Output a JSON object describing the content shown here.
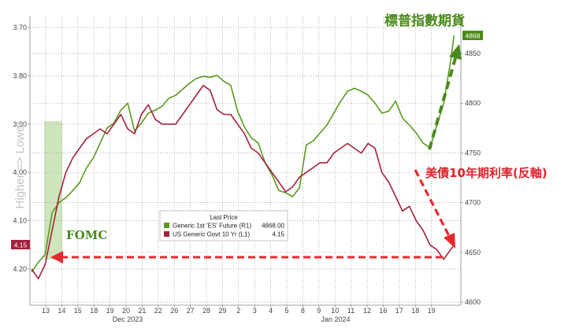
{
  "chart_data": {
    "type": "line",
    "left_axis": {
      "label": "Higher => Lower",
      "ticks": [
        "3.70",
        "3.80",
        "3.90",
        "4.00",
        "4.10",
        "4.20"
      ],
      "ylim": [
        3.7,
        4.25
      ],
      "inverted": true
    },
    "right_axis": {
      "ticks": [
        "4850",
        "4800",
        "4750",
        "4700",
        "4650",
        "4600"
      ],
      "ylim": [
        4595,
        4875
      ]
    },
    "x_tick_labels": [
      "13",
      "14",
      "15",
      "18",
      "19",
      "20",
      "21",
      "22",
      "26",
      "27",
      "28",
      "29",
      "2",
      "3",
      "4",
      "5",
      "8",
      "9",
      "10",
      "11",
      "12",
      "16",
      "17",
      "18",
      "19"
    ],
    "x_month_labels": [
      "Dec 2023",
      "Jan 2024"
    ],
    "legend": {
      "title": "Last Price",
      "entries": [
        {
          "name": "Generic 1st 'ES' Future  (R1)",
          "value": "4868.00",
          "color": "#5a9a1e"
        },
        {
          "name": "US Generic Govt 10 Yr  (L1)",
          "value": "4.15",
          "color": "#a3213c"
        }
      ]
    },
    "badges": {
      "es_last": "4868",
      "yield_last": "4.15"
    },
    "annotations": {
      "es_title": "標普指數期貨",
      "yield_title": "美債10年期利率(反軸)",
      "fomc": "FOMC"
    },
    "series": [
      {
        "name": "Generic 1st 'ES' Future",
        "axis": "right",
        "color": "#5a9a1e",
        "x": [
          0,
          0.4,
          0.8,
          1.2,
          1.6,
          2.0,
          2.4,
          2.8,
          3.2,
          3.6,
          4.0,
          4.4,
          4.8,
          5.2,
          5.6,
          6.0,
          6.4,
          6.8,
          7.2,
          7.6,
          8.0,
          8.4,
          8.8,
          9.2,
          9.6,
          10.0,
          10.4,
          10.8,
          11.2,
          11.6,
          12.0,
          12.4,
          12.8,
          13.2,
          13.6,
          14.0,
          14.4,
          14.8,
          15.2,
          15.6,
          16.0,
          16.4,
          16.8,
          17.2,
          17.6,
          18.0,
          18.4,
          18.8,
          19.2,
          19.6,
          20.0,
          20.4,
          20.8,
          21.2,
          21.6,
          22.0,
          22.4,
          22.8,
          23.2,
          23.6,
          24.0,
          24.4,
          24.6
        ],
        "values": [
          4630,
          4640,
          4648,
          4690,
          4700,
          4705,
          4712,
          4720,
          4735,
          4745,
          4760,
          4775,
          4780,
          4793,
          4800,
          4772,
          4780,
          4790,
          4793,
          4797,
          4805,
          4808,
          4814,
          4820,
          4825,
          4827,
          4826,
          4828,
          4822,
          4818,
          4792,
          4776,
          4765,
          4760,
          4740,
          4728,
          4712,
          4710,
          4706,
          4715,
          4758,
          4762,
          4770,
          4778,
          4790,
          4802,
          4812,
          4815,
          4812,
          4808,
          4800,
          4790,
          4792,
          4802,
          4785,
          4778,
          4770,
          4760,
          4755,
          4778,
          4800,
          4842,
          4868
        ]
      },
      {
        "name": "US Generic Govt 10 Yr",
        "axis": "left",
        "color": "#a3213c",
        "x": [
          0,
          0.4,
          0.8,
          1.2,
          1.6,
          2.0,
          2.4,
          2.8,
          3.2,
          3.6,
          4.0,
          4.4,
          4.8,
          5.2,
          5.6,
          6.0,
          6.4,
          6.8,
          7.2,
          7.6,
          8.0,
          8.4,
          8.8,
          9.2,
          9.6,
          10.0,
          10.4,
          10.8,
          11.2,
          11.6,
          12.0,
          12.4,
          12.8,
          13.2,
          13.6,
          14.0,
          14.4,
          14.8,
          15.2,
          15.6,
          16.0,
          16.4,
          16.8,
          17.2,
          17.6,
          18.0,
          18.4,
          18.8,
          19.2,
          19.6,
          20.0,
          20.4,
          20.8,
          21.2,
          21.6,
          22.0,
          22.4,
          22.8,
          23.2,
          23.6,
          24.0,
          24.4,
          24.6
        ],
        "values": [
          4.2,
          4.22,
          4.19,
          4.12,
          4.05,
          4.0,
          3.97,
          3.95,
          3.93,
          3.92,
          3.91,
          3.92,
          3.9,
          3.88,
          3.91,
          3.92,
          3.88,
          3.86,
          3.89,
          3.9,
          3.9,
          3.9,
          3.88,
          3.86,
          3.84,
          3.82,
          3.83,
          3.87,
          3.88,
          3.88,
          3.9,
          3.92,
          3.95,
          3.96,
          3.98,
          4.0,
          4.02,
          4.04,
          4.03,
          4.01,
          4.0,
          3.99,
          3.98,
          3.98,
          3.96,
          3.95,
          3.94,
          3.95,
          3.96,
          3.94,
          3.95,
          4.0,
          4.02,
          4.05,
          4.08,
          4.07,
          4.1,
          4.12,
          4.15,
          4.16,
          4.18,
          4.16,
          4.15
        ]
      }
    ]
  }
}
